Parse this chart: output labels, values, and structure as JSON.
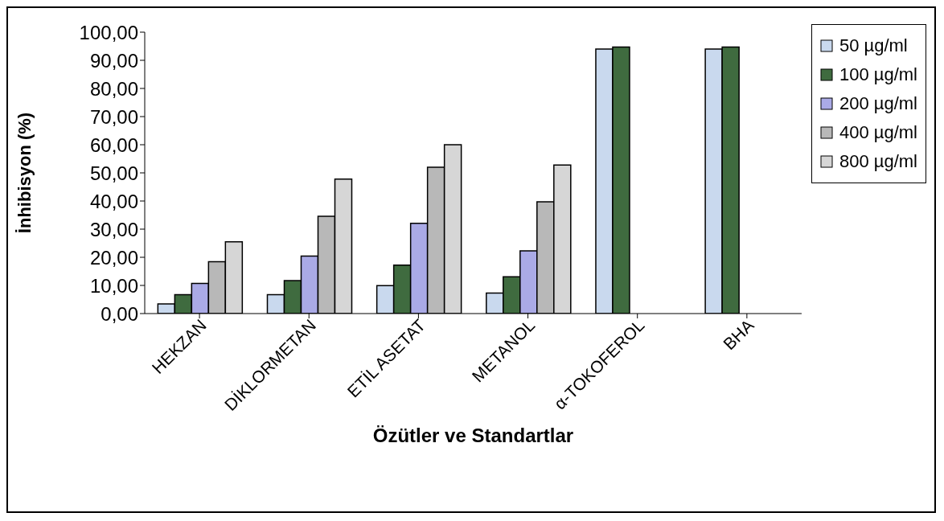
{
  "chart_data": {
    "type": "bar",
    "xlabel": "Özütler ve Standartlar",
    "ylabel": "İnhibisyon (%)",
    "categories": [
      "HEKZAN",
      "DİKLORMETAN",
      "ETİL ASETAT",
      "METANOL",
      "α-TOKOFEROL",
      "BHA"
    ],
    "series": [
      {
        "name": "50 µg/ml",
        "color": "#c9d9ee",
        "values": [
          3.4,
          6.7,
          9.9,
          7.3,
          94.0,
          94.0
        ]
      },
      {
        "name": "100 µg/ml",
        "color": "#3f6b3f",
        "values": [
          6.7,
          11.7,
          17.2,
          13.1,
          94.7,
          94.7
        ]
      },
      {
        "name": "200 µg/ml",
        "color": "#aaaae6",
        "values": [
          10.7,
          20.4,
          32.1,
          22.3,
          null,
          null
        ]
      },
      {
        "name": "400 µg/ml",
        "color": "#b8b8b8",
        "values": [
          18.4,
          34.6,
          52.0,
          39.7,
          null,
          null
        ]
      },
      {
        "name": "800 µg/ml",
        "color": "#d6d6d6",
        "values": [
          25.5,
          47.8,
          60.0,
          52.8,
          null,
          null
        ]
      }
    ],
    "ylim": [
      0,
      100
    ],
    "yticks": [
      {
        "value": 0,
        "label": "0,00"
      },
      {
        "value": 10,
        "label": "10,00"
      },
      {
        "value": 20,
        "label": "20,00"
      },
      {
        "value": 30,
        "label": "30,00"
      },
      {
        "value": 40,
        "label": "40,00"
      },
      {
        "value": 50,
        "label": "50,00"
      },
      {
        "value": 60,
        "label": "60,00"
      },
      {
        "value": 70,
        "label": "70,00"
      },
      {
        "value": 80,
        "label": "80,00"
      },
      {
        "value": 90,
        "label": "90,00"
      },
      {
        "value": 100,
        "label": "100,00"
      }
    ],
    "grid": false,
    "legend": "right"
  }
}
